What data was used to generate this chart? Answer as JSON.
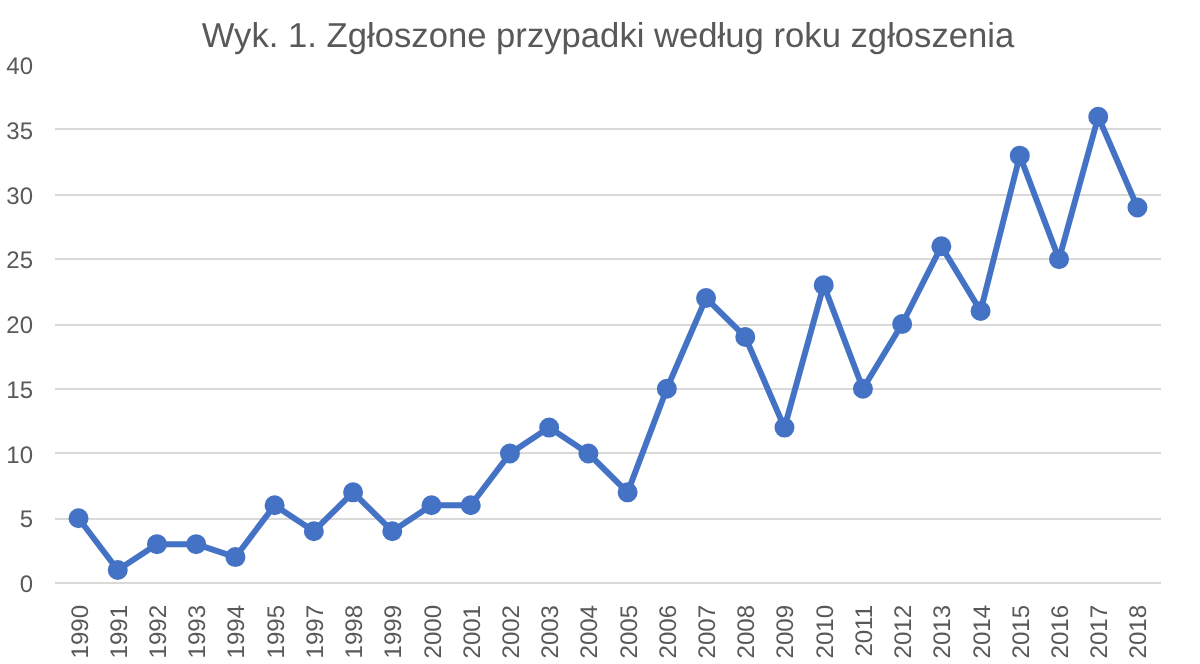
{
  "chart_data": {
    "type": "line",
    "title": "Wyk. 1. Zgłoszone przypadki według roku zgłoszenia",
    "categories": [
      "1990",
      "1991",
      "1992",
      "1993",
      "1994",
      "1995",
      "1997",
      "1998",
      "1999",
      "2000",
      "2001",
      "2002",
      "2003",
      "2004",
      "2005",
      "2006",
      "2007",
      "2008",
      "2009",
      "2010",
      "2011",
      "2012",
      "2013",
      "2014",
      "2015",
      "2016",
      "2017",
      "2018"
    ],
    "series": [
      {
        "color": "#4472c4",
        "values": [
          5,
          1,
          3,
          3,
          2,
          6,
          4,
          7,
          4,
          6,
          6,
          10,
          12,
          10,
          7,
          15,
          22,
          19,
          12,
          23,
          15,
          20,
          26,
          21,
          33,
          25,
          36,
          29
        ]
      }
    ],
    "ylim": [
      0,
      40
    ],
    "yticks": [
      0,
      5,
      10,
      15,
      20,
      25,
      30,
      35,
      40
    ],
    "grid": "y",
    "marker": "circle",
    "line_style": "solid"
  }
}
